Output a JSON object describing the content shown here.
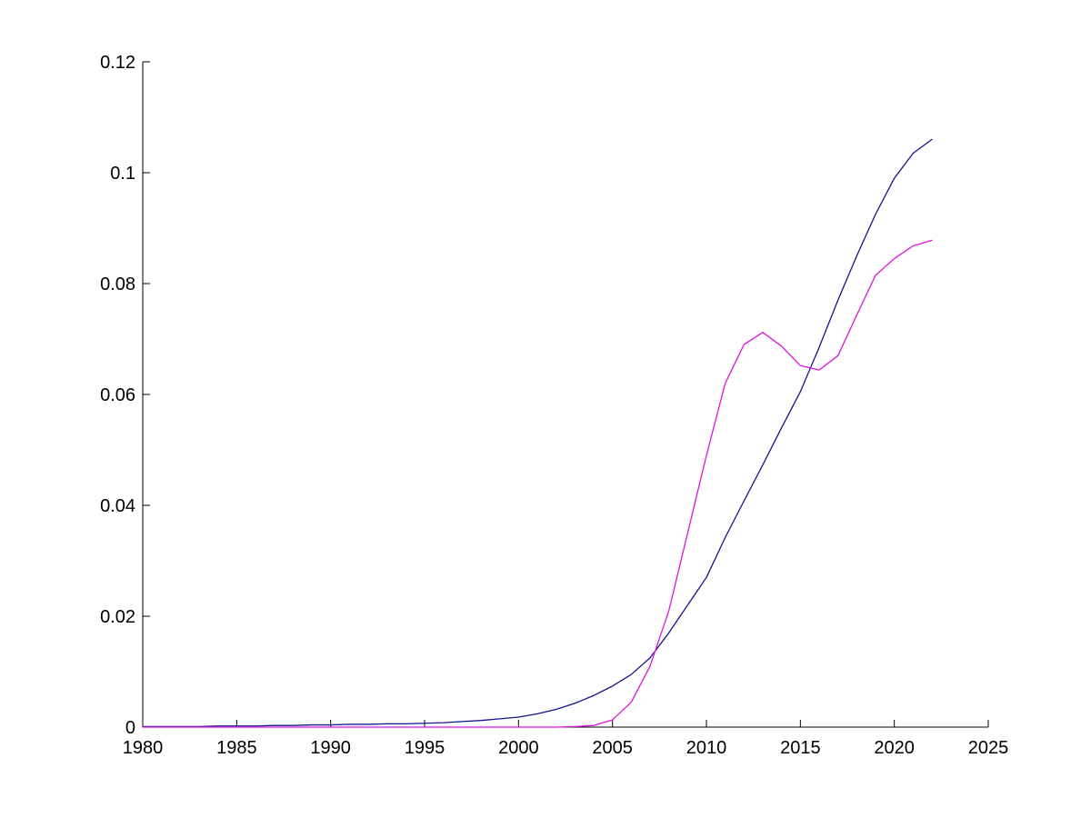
{
  "figure": {
    "background": "#FFFFFF"
  },
  "chart_data": {
    "type": "line",
    "title": "",
    "xlabel": "",
    "ylabel": "",
    "grid": false,
    "legend": null,
    "background": "#FFFFFF",
    "axis_color": "#000000",
    "xlim": [
      1980,
      2025
    ],
    "ylim": [
      0,
      0.12
    ],
    "x_ticks": [
      1980,
      1985,
      1990,
      1995,
      2000,
      2005,
      2010,
      2015,
      2020,
      2025
    ],
    "x_tick_labels": [
      "1980",
      "1985",
      "1990",
      "1995",
      "2000",
      "2005",
      "2010",
      "2015",
      "2020",
      "2025"
    ],
    "y_ticks": [
      0,
      0.02,
      0.04,
      0.06,
      0.08,
      0.1,
      0.12
    ],
    "y_tick_labels": [
      "0",
      "0.02",
      "0.04",
      "0.06",
      "0.08",
      "0.1",
      "0.12"
    ],
    "x": [
      1980,
      1981,
      1982,
      1983,
      1984,
      1985,
      1986,
      1987,
      1988,
      1989,
      1990,
      1991,
      1992,
      1993,
      1994,
      1995,
      1996,
      1997,
      1998,
      1999,
      2000,
      2001,
      2002,
      2003,
      2004,
      2005,
      2006,
      2007,
      2008,
      2009,
      2010,
      2011,
      2012,
      2013,
      2014,
      2015,
      2016,
      2017,
      2018,
      2019,
      2020,
      2021,
      2022
    ],
    "series": [
      {
        "name": "dark-blue-line",
        "color": "#14148F",
        "values": [
          0.0001,
          0.0001,
          0.0001,
          0.0001,
          0.0002,
          0.0002,
          0.0002,
          0.0003,
          0.0003,
          0.0004,
          0.0004,
          0.0005,
          0.0005,
          0.0006,
          0.0006,
          0.0007,
          0.0008,
          0.001,
          0.0012,
          0.0015,
          0.0018,
          0.0024,
          0.0032,
          0.0043,
          0.0057,
          0.0074,
          0.0095,
          0.0125,
          0.017,
          0.022,
          0.027,
          0.0342,
          0.0408,
          0.0473,
          0.054,
          0.0605,
          0.0685,
          0.077,
          0.085,
          0.0925,
          0.099,
          0.1035,
          0.106
        ]
      },
      {
        "name": "magenta-line",
        "color": "#DE14DE",
        "values": [
          0.0,
          0.0,
          0.0,
          0.0,
          0.0,
          0.0,
          0.0,
          0.0,
          0.0,
          0.0,
          0.0,
          0.0,
          0.0,
          0.0,
          0.0,
          0.0,
          0.0,
          0.0,
          0.0,
          0.0,
          0.0,
          0.0,
          0.0,
          0.0001,
          0.0003,
          0.0013,
          0.0045,
          0.011,
          0.021,
          0.035,
          0.049,
          0.062,
          0.069,
          0.0712,
          0.0687,
          0.0652,
          0.0644,
          0.067,
          0.0743,
          0.0815,
          0.0845,
          0.0868,
          0.0878
        ]
      }
    ]
  }
}
